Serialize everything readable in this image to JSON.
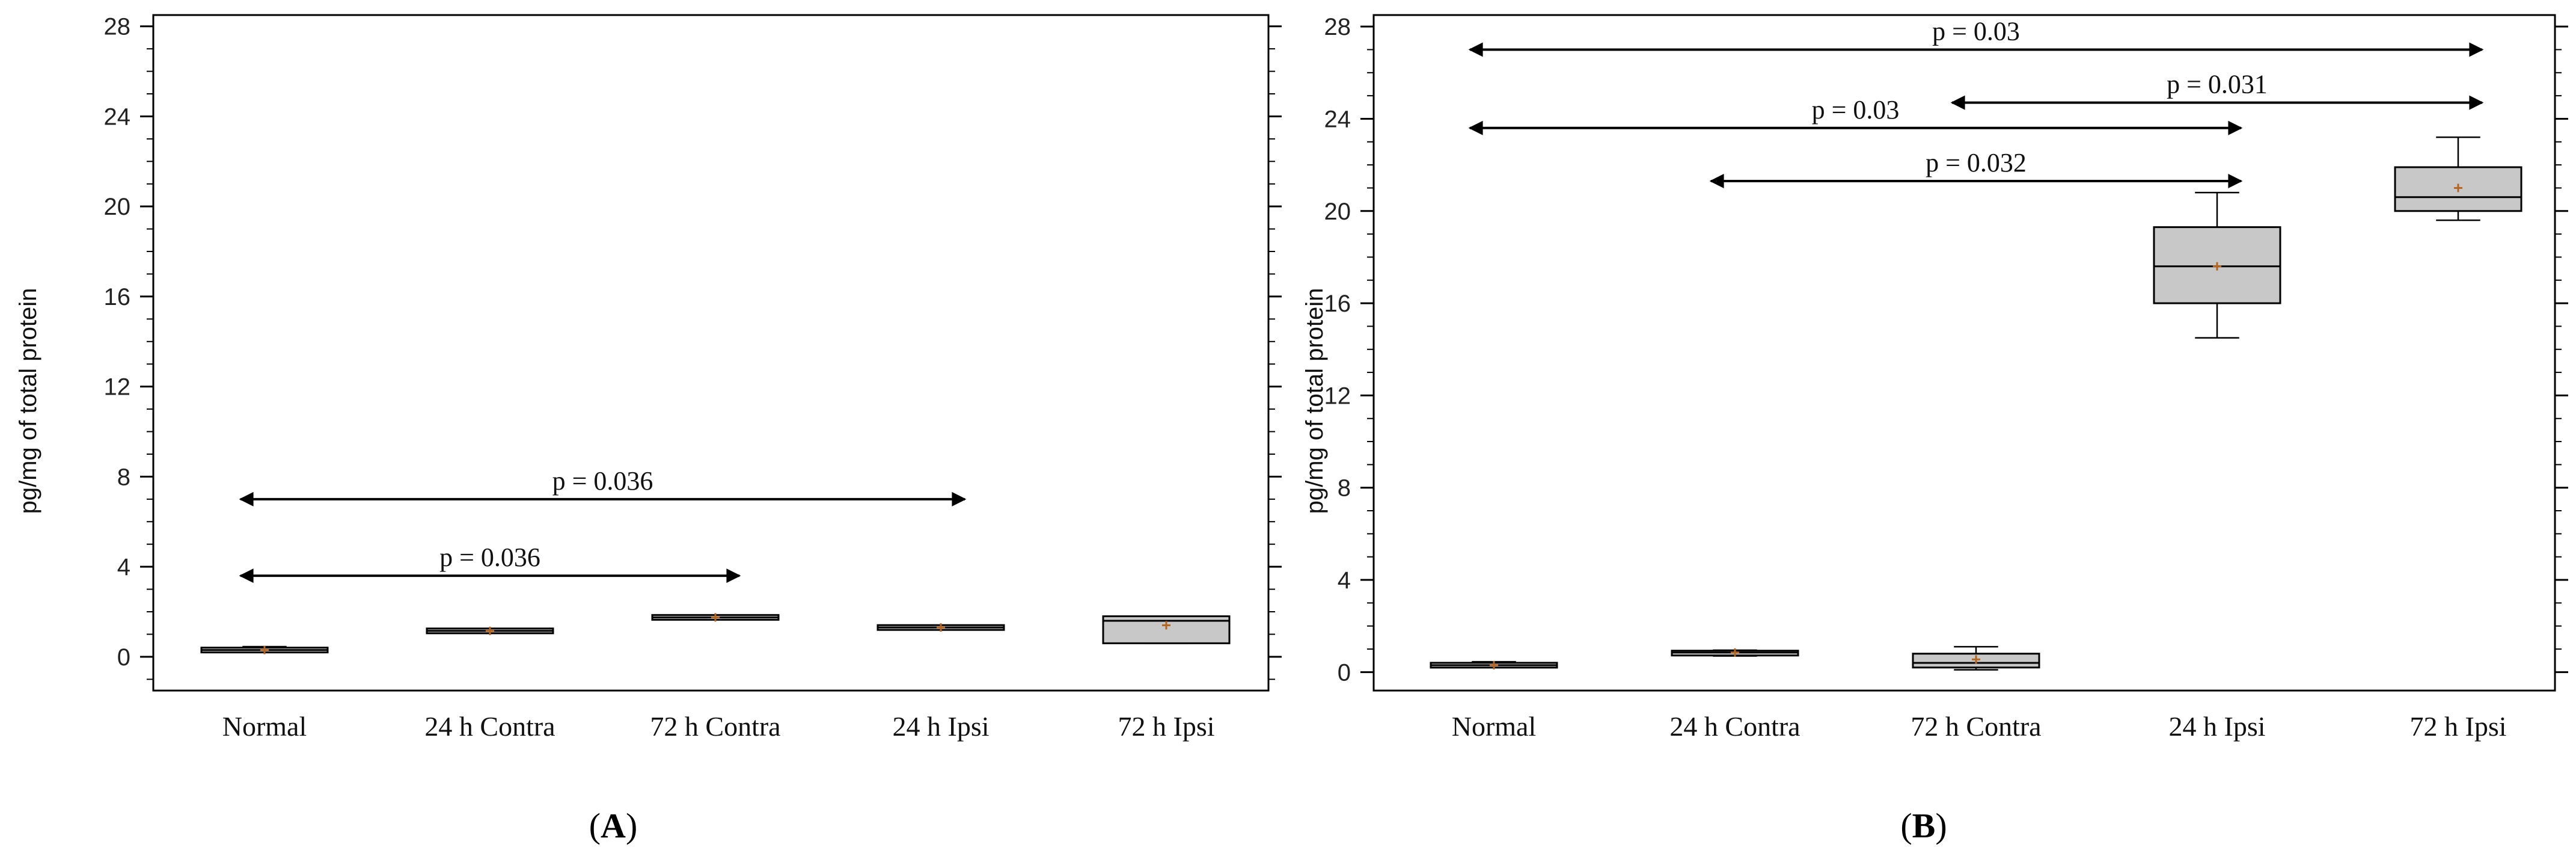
{
  "chart_data": [
    {
      "panel": "A",
      "type": "box",
      "ylabel": "pg/mg of total protein",
      "ylim": [
        -1.5,
        28.5
      ],
      "yticks": [
        0,
        4,
        8,
        12,
        16,
        20,
        24,
        28
      ],
      "categories": [
        "Normal",
        "24 h Contra",
        "72 h Contra",
        "24 h Ipsi",
        "72 h Ipsi"
      ],
      "boxes": [
        {
          "category": "Normal",
          "min": 0.2,
          "q1": 0.25,
          "median": 0.3,
          "q3": 0.35,
          "max": 0.45,
          "mean": 0.3
        },
        {
          "category": "24 h Contra",
          "min": 1.1,
          "q1": 1.1,
          "median": 1.15,
          "q3": 1.2,
          "max": 1.2,
          "mean": 1.15
        },
        {
          "category": "72 h Contra",
          "min": 1.7,
          "q1": 1.7,
          "median": 1.75,
          "q3": 1.8,
          "max": 1.8,
          "mean": 1.75
        },
        {
          "category": "24 h Ipsi",
          "min": 1.25,
          "q1": 1.25,
          "median": 1.3,
          "q3": 1.35,
          "max": 1.35,
          "mean": 1.3
        },
        {
          "category": "72 h Ipsi",
          "min": 0.6,
          "q1": 0.6,
          "median": 1.6,
          "q3": 1.8,
          "max": 1.8,
          "mean": 1.4
        }
      ],
      "annotations": [
        {
          "from": "Normal",
          "to": "24 h Ipsi",
          "y": 7.0,
          "label": "p = 0.036"
        },
        {
          "from": "Normal",
          "to": "72 h Contra",
          "y": 3.6,
          "label": "p = 0.036"
        }
      ]
    },
    {
      "panel": "B",
      "type": "box",
      "ylabel": "pg/mg of total protein",
      "ylim": [
        -0.8,
        28.5
      ],
      "yticks": [
        0,
        4,
        8,
        12,
        16,
        20,
        24,
        28
      ],
      "categories": [
        "Normal",
        "24 h Contra",
        "72 h Contra",
        "24 h Ipsi",
        "72 h Ipsi"
      ],
      "boxes": [
        {
          "category": "Normal",
          "min": 0.2,
          "q1": 0.25,
          "median": 0.3,
          "q3": 0.35,
          "max": 0.45,
          "mean": 0.3
        },
        {
          "category": "24 h Contra",
          "min": 0.7,
          "q1": 0.75,
          "median": 0.85,
          "q3": 0.9,
          "max": 0.95,
          "mean": 0.85
        },
        {
          "category": "72 h Contra",
          "min": 0.1,
          "q1": 0.2,
          "median": 0.4,
          "q3": 0.8,
          "max": 1.1,
          "mean": 0.55
        },
        {
          "category": "24 h Ipsi",
          "min": 14.5,
          "q1": 16.0,
          "median": 17.6,
          "q3": 19.3,
          "max": 20.8,
          "mean": 17.6
        },
        {
          "category": "72 h Ipsi",
          "min": 19.6,
          "q1": 20.0,
          "median": 20.6,
          "q3": 21.9,
          "max": 23.2,
          "mean": 21.0
        }
      ],
      "annotations": [
        {
          "from": "Normal",
          "to": "72 h Ipsi",
          "y": 27.0,
          "label": "p = 0.03"
        },
        {
          "from": "72 h Contra",
          "to": "72 h Ipsi",
          "y": 24.7,
          "label": "p = 0.031"
        },
        {
          "from": "Normal",
          "to": "24 h Ipsi",
          "y": 23.6,
          "label": "p = 0.03"
        },
        {
          "from": "24 h Contra",
          "to": "24 h Ipsi",
          "y": 21.3,
          "label": "p = 0.032"
        }
      ]
    }
  ],
  "panel_labels": {
    "A": "A",
    "B": "B"
  },
  "colors": {
    "box_fill": "#c8c8c8",
    "axis": "#000000",
    "mean_marker": "#b5651d"
  }
}
